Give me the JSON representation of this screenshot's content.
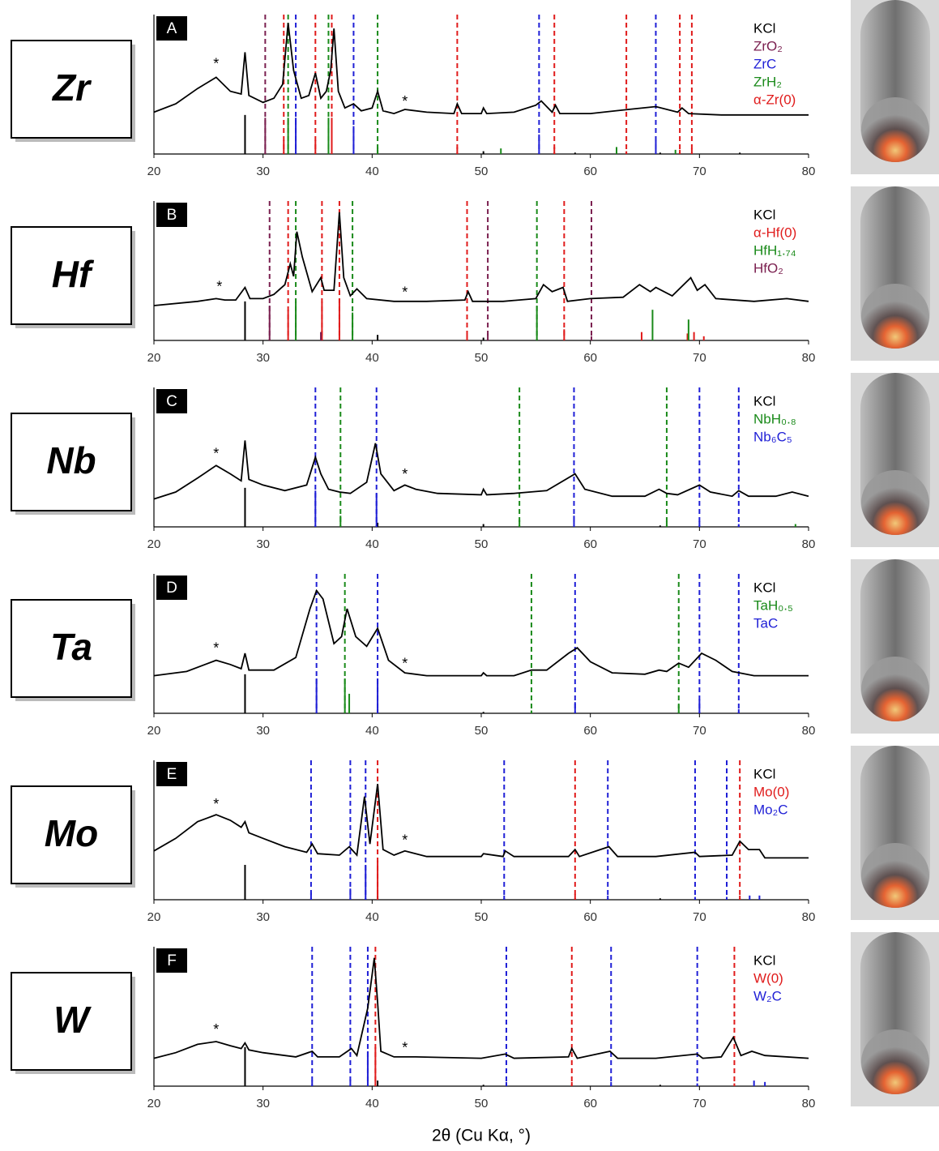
{
  "chart_data": [
    {
      "type": "line",
      "label": "Zr",
      "panel": "A",
      "color": "#000000",
      "xlim": [
        20,
        80
      ],
      "xticks": [
        20,
        30,
        40,
        50,
        60,
        70,
        80
      ],
      "ylim": [
        0,
        100
      ],
      "x": [
        20,
        22,
        24,
        25.7,
        27,
        28,
        28.35,
        28.7,
        30,
        31,
        31.8,
        32.3,
        32.8,
        33.5,
        34.2,
        34.8,
        35.3,
        35.8,
        36.2,
        36.5,
        36.9,
        37.5,
        38.3,
        39,
        40,
        40.5,
        41,
        42,
        43,
        45,
        47.5,
        47.8,
        48.2,
        50,
        50.2,
        50.5,
        53,
        55,
        55.5,
        56.5,
        56.8,
        57.2,
        60,
        63.5,
        66,
        68,
        68.4,
        69,
        72,
        75,
        80
      ],
      "values": [
        30,
        36,
        47,
        55,
        45,
        43,
        73,
        42,
        37,
        40,
        50,
        94,
        60,
        40,
        42,
        58,
        40,
        45,
        60,
        90,
        45,
        33,
        36,
        31,
        33,
        45,
        31,
        29,
        32,
        30,
        29,
        36,
        29,
        29,
        33,
        29,
        30,
        35,
        38,
        30,
        35,
        29,
        29,
        32,
        34,
        30,
        33,
        29,
        28,
        28,
        28
      ],
      "annotations": [
        {
          "text": "*",
          "x": 25.7,
          "y": 64
        },
        {
          "text": "*",
          "x": 43,
          "y": 37
        }
      ],
      "phases": [
        {
          "name": "KCl",
          "color": "#000000",
          "dashed": [],
          "sticks": {
            "x": [
              28.35,
              40.5,
              50.2,
              58.6,
              66.4,
              73.7
            ],
            "values": [
              28,
              3,
              2,
              1,
              1,
              1
            ]
          }
        },
        {
          "name": "ZrO₂",
          "color": "#7b2050",
          "dashed": [
            30.2
          ],
          "sticks": {
            "x": [
              30.2
            ],
            "values": [
              26
            ]
          }
        },
        {
          "name": "ZrC",
          "color": "#1f1fd6",
          "dashed": [
            33.0,
            38.3,
            55.3,
            66.0
          ],
          "sticks": {
            "x": [
              33.0,
              38.3,
              55.3,
              66.0
            ],
            "values": [
              26,
              20,
              14,
              10
            ]
          }
        },
        {
          "name": "ZrH₂",
          "color": "#1a8a1a",
          "dashed": [
            32.3,
            36.0,
            40.5
          ],
          "sticks": {
            "x": [
              32.3,
              36.0,
              40.5,
              51.8,
              62.4,
              67.8
            ],
            "values": [
              26,
              26,
              5,
              4,
              5,
              3
            ]
          }
        },
        {
          "name": "α-Zr(0)",
          "color": "#e01b1b",
          "dashed": [
            31.9,
            34.8,
            36.3,
            47.8,
            56.7,
            63.3,
            68.2,
            69.3
          ],
          "sticks": {
            "x": [
              31.9,
              34.8,
              36.3,
              47.8,
              56.7,
              63.3,
              68.2,
              69.3
            ],
            "values": [
              10,
              10,
              26,
              5,
              5,
              2,
              3,
              4
            ]
          }
        }
      ]
    },
    {
      "type": "line",
      "label": "Hf",
      "panel": "B",
      "color": "#000000",
      "xlim": [
        20,
        80
      ],
      "xticks": [
        20,
        30,
        40,
        50,
        60,
        70,
        80
      ],
      "ylim": [
        0,
        100
      ],
      "x": [
        20,
        24,
        25.7,
        26.5,
        27.5,
        28.35,
        28.8,
        30,
        31,
        32,
        32.5,
        32.8,
        33.1,
        33.6,
        34.5,
        35.3,
        35.6,
        36.5,
        37,
        37.4,
        38,
        38.6,
        39.5,
        42,
        45,
        48.5,
        48.8,
        49.2,
        52,
        55,
        55.7,
        56.5,
        57.5,
        57.9,
        60,
        63,
        64.5,
        65.5,
        66,
        67.5,
        69.2,
        69.8,
        70.5,
        71.5,
        75,
        78,
        80
      ],
      "values": [
        25,
        28,
        30,
        29,
        29,
        38,
        30,
        30,
        33,
        40,
        55,
        46,
        78,
        60,
        35,
        45,
        36,
        36,
        92,
        45,
        32,
        37,
        30,
        28,
        28,
        29,
        35,
        28,
        28,
        30,
        40,
        35,
        38,
        28,
        30,
        31,
        40,
        35,
        38,
        32,
        45,
        36,
        40,
        30,
        28,
        30,
        28
      ],
      "annotations": [
        {
          "text": "*",
          "x": 26,
          "y": 38
        },
        {
          "text": "*",
          "x": 43,
          "y": 34
        }
      ],
      "phases": [
        {
          "name": "KCl",
          "color": "#000000",
          "dashed": [],
          "sticks": {
            "x": [
              28.35,
              40.5,
              50.2
            ],
            "values": [
              28,
              4,
              2
            ]
          }
        },
        {
          "name": "α-Hf(0)",
          "color": "#e01b1b",
          "dashed": [
            32.3,
            35.4,
            37.0,
            48.7,
            57.6
          ],
          "sticks": {
            "x": [
              32.3,
              35.4,
              37.0,
              48.7,
              57.6,
              64.7,
              68.9,
              69.5,
              70.4
            ],
            "values": [
              22,
              28,
              30,
              5,
              8,
              6,
              5,
              6,
              3
            ]
          }
        },
        {
          "name": "HfH₁.₇₄",
          "color": "#1a8a1a",
          "dashed": [
            33.0,
            38.2,
            55.1
          ],
          "sticks": {
            "x": [
              33.0,
              38.2,
              55.1,
              65.7,
              69.0
            ],
            "values": [
              28,
              20,
              25,
              22,
              15
            ]
          }
        },
        {
          "name": "HfO₂",
          "color": "#7b2050",
          "dashed": [
            30.6,
            50.6,
            60.1
          ],
          "sticks": {
            "x": [
              30.6,
              35.3,
              50.6,
              60.1
            ],
            "values": [
              25,
              6,
              5,
              3
            ]
          }
        }
      ]
    },
    {
      "type": "line",
      "label": "Nb",
      "panel": "C",
      "color": "#000000",
      "xlim": [
        20,
        80
      ],
      "xticks": [
        20,
        30,
        40,
        50,
        60,
        70,
        80
      ],
      "ylim": [
        0,
        100
      ],
      "x": [
        20,
        22,
        24,
        25.7,
        27,
        28,
        28.35,
        28.7,
        30,
        32,
        34,
        34.8,
        35.3,
        36,
        37,
        38,
        39.5,
        40.3,
        40.8,
        42,
        43,
        44,
        46,
        50,
        50.2,
        50.5,
        53,
        56,
        58.6,
        59.5,
        62,
        65,
        66.3,
        67,
        68,
        70,
        71,
        73,
        73.6,
        74.5,
        77,
        78.5,
        80
      ],
      "values": [
        20,
        25,
        35,
        44,
        38,
        33,
        62,
        34,
        30,
        26,
        30,
        50,
        38,
        27,
        25,
        24,
        32,
        60,
        38,
        26,
        30,
        27,
        24,
        23,
        27,
        23,
        24,
        26,
        38,
        27,
        22,
        22,
        27,
        24,
        23,
        30,
        25,
        22,
        26,
        22,
        22,
        25,
        22
      ],
      "annotations": [
        {
          "text": "*",
          "x": 25.7,
          "y": 52
        },
        {
          "text": "*",
          "x": 43,
          "y": 37
        }
      ],
      "phases": [
        {
          "name": "KCl",
          "color": "#000000",
          "dashed": [],
          "sticks": {
            "x": [
              28.35,
              40.5,
              50.2,
              66.4
            ],
            "values": [
              28,
              3,
              2,
              1
            ]
          }
        },
        {
          "name": "NbH₀.₈",
          "color": "#1a8a1a",
          "dashed": [
            37.1,
            53.5,
            67.0
          ],
          "sticks": {
            "x": [
              37.1,
              53.5,
              67.0,
              78.8
            ],
            "values": [
              8,
              5,
              4,
              2
            ]
          }
        },
        {
          "name": "Nb₆C₅",
          "color": "#1f1fd6",
          "dashed": [
            34.8,
            40.4,
            58.5,
            70.0,
            73.6
          ],
          "sticks": {
            "x": [
              34.8,
              40.4,
              58.5,
              70.0,
              73.6
            ],
            "values": [
              26,
              24,
              8,
              4,
              2
            ]
          }
        }
      ]
    },
    {
      "type": "line",
      "label": "Ta",
      "panel": "D",
      "color": "#000000",
      "xlim": [
        20,
        80
      ],
      "xticks": [
        20,
        30,
        40,
        50,
        60,
        70,
        80
      ],
      "ylim": [
        0,
        100
      ],
      "x": [
        20,
        23,
        25.7,
        27,
        28,
        28.35,
        28.7,
        31,
        33,
        34.3,
        34.9,
        35.5,
        36.5,
        37.2,
        37.7,
        38.5,
        39.5,
        40.5,
        41.5,
        43,
        45,
        50,
        50.2,
        50.5,
        53,
        54.6,
        56,
        58,
        58.8,
        60,
        62,
        65,
        66.3,
        67,
        68.1,
        69,
        70.2,
        71.5,
        73,
        75,
        80
      ],
      "values": [
        27,
        30,
        38,
        35,
        32,
        43,
        31,
        31,
        40,
        75,
        88,
        82,
        50,
        55,
        75,
        55,
        48,
        61,
        38,
        29,
        27,
        27,
        29,
        27,
        27,
        31,
        31,
        43,
        47,
        37,
        29,
        28,
        31,
        30,
        36,
        33,
        43,
        38,
        30,
        27,
        27
      ],
      "annotations": [
        {
          "text": "*",
          "x": 25.7,
          "y": 46
        },
        {
          "text": "*",
          "x": 43,
          "y": 35
        }
      ],
      "phases": [
        {
          "name": "KCl",
          "color": "#000000",
          "dashed": [],
          "sticks": {
            "x": [
              28.35,
              40.5,
              50.2
            ],
            "values": [
              28,
              3,
              1
            ]
          }
        },
        {
          "name": "TaH₀.₅",
          "color": "#1a8a1a",
          "dashed": [
            37.5,
            54.6,
            68.1
          ],
          "sticks": {
            "x": [
              37.5,
              37.9,
              54.6,
              68.1
            ],
            "values": [
              25,
              14,
              2,
              6
            ]
          }
        },
        {
          "name": "TaC",
          "color": "#1f1fd6",
          "dashed": [
            34.9,
            40.5,
            58.6,
            70.0,
            73.6
          ],
          "sticks": {
            "x": [
              34.9,
              40.5,
              58.6,
              70.0,
              73.6
            ],
            "values": [
              25,
              25,
              8,
              10,
              3
            ]
          }
        }
      ]
    },
    {
      "type": "line",
      "label": "Mo",
      "panel": "E",
      "color": "#000000",
      "xlim": [
        20,
        80
      ],
      "xticks": [
        20,
        30,
        40,
        50,
        60,
        70,
        80
      ],
      "ylim": [
        0,
        100
      ],
      "x": [
        20,
        22,
        24,
        25.7,
        27,
        28,
        28.35,
        28.7,
        30,
        32,
        34,
        34.5,
        35,
        37,
        37.9,
        38.6,
        39.3,
        39.8,
        40.5,
        41,
        42,
        43,
        45,
        50,
        50.2,
        52,
        52.2,
        53,
        58,
        58.6,
        59,
        61.7,
        62.5,
        66,
        69.6,
        70,
        73,
        73.7,
        74.5,
        75.5,
        76,
        80
      ],
      "values": [
        35,
        44,
        56,
        61,
        57,
        52,
        56,
        48,
        44,
        38,
        34,
        40,
        33,
        32,
        38,
        32,
        74,
        40,
        83,
        36,
        32,
        35,
        31,
        31,
        33,
        31,
        35,
        31,
        31,
        36,
        31,
        38,
        31,
        31,
        34,
        31,
        32,
        42,
        36,
        36,
        30,
        30
      ],
      "annotations": [
        {
          "text": "*",
          "x": 25.7,
          "y": 68
        },
        {
          "text": "*",
          "x": 43,
          "y": 42
        }
      ],
      "phases": [
        {
          "name": "KCl",
          "color": "#000000",
          "dashed": [],
          "sticks": {
            "x": [
              28.35,
              40.5,
              66.4
            ],
            "values": [
              25,
              3,
              1
            ]
          }
        },
        {
          "name": "Mo(0)",
          "color": "#e01b1b",
          "dashed": [
            40.5,
            58.6,
            73.7
          ],
          "sticks": {
            "x": [
              40.5,
              58.6,
              73.7
            ],
            "values": [
              28,
              4,
              3
            ]
          }
        },
        {
          "name": "Mo₂C",
          "color": "#1f1fd6",
          "dashed": [
            34.4,
            38.0,
            39.4,
            52.1,
            61.6,
            69.6,
            72.5
          ],
          "sticks": {
            "x": [
              34.4,
              38.0,
              39.4,
              52.1,
              61.6,
              69.6,
              72.5,
              74.6,
              75.5
            ],
            "values": [
              5,
              8,
              25,
              3,
              3,
              2,
              2,
              3,
              3
            ]
          }
        }
      ]
    },
    {
      "type": "line",
      "label": "W",
      "panel": "F",
      "color": "#000000",
      "xlim": [
        20,
        80
      ],
      "xticks": [
        20,
        30,
        40,
        50,
        60,
        70,
        80
      ],
      "ylim": [
        0,
        100
      ],
      "x": [
        20,
        22,
        24,
        25.7,
        27,
        28,
        28.35,
        28.7,
        30,
        33,
        34.5,
        35,
        37,
        38.1,
        38.6,
        39.6,
        40.2,
        40.5,
        40.8,
        42,
        44,
        50,
        52.2,
        53,
        58,
        58.3,
        58.8,
        61.8,
        62.5,
        66,
        69.8,
        70.3,
        72,
        73.1,
        73.8,
        74.8,
        76,
        80
      ],
      "values": [
        20,
        24,
        30,
        32,
        29,
        27,
        31,
        26,
        24,
        21,
        25,
        21,
        21,
        27,
        22,
        56,
        92,
        60,
        25,
        21,
        21,
        20,
        23,
        20,
        21,
        27,
        20,
        25,
        20,
        20,
        23,
        20,
        21,
        35,
        22,
        25,
        22,
        20
      ],
      "annotations": [
        {
          "text": "*",
          "x": 25.7,
          "y": 40
        },
        {
          "text": "*",
          "x": 43,
          "y": 27
        }
      ],
      "xlabel": "2θ (Cu Kα, °)",
      "phases": [
        {
          "name": "KCl",
          "color": "#000000",
          "dashed": [],
          "sticks": {
            "x": [
              28.35,
              40.5,
              50.2,
              66.4
            ],
            "values": [
              28,
              4,
              1,
              1
            ]
          }
        },
        {
          "name": "W(0)",
          "color": "#e01b1b",
          "dashed": [
            40.3,
            58.3,
            73.2
          ],
          "sticks": {
            "x": [
              40.3,
              58.3,
              73.2
            ],
            "values": [
              28,
              3,
              2
            ]
          }
        },
        {
          "name": "W₂C",
          "color": "#1f1fd6",
          "dashed": [
            34.5,
            38.0,
            39.6,
            52.3,
            61.9,
            69.8
          ],
          "sticks": {
            "x": [
              34.5,
              38.0,
              39.6,
              52.3,
              61.9,
              69.8,
              75.0,
              76.0
            ],
            "values": [
              4,
              5,
              25,
              3,
              3,
              2,
              4,
              3
            ]
          }
        }
      ]
    }
  ]
}
